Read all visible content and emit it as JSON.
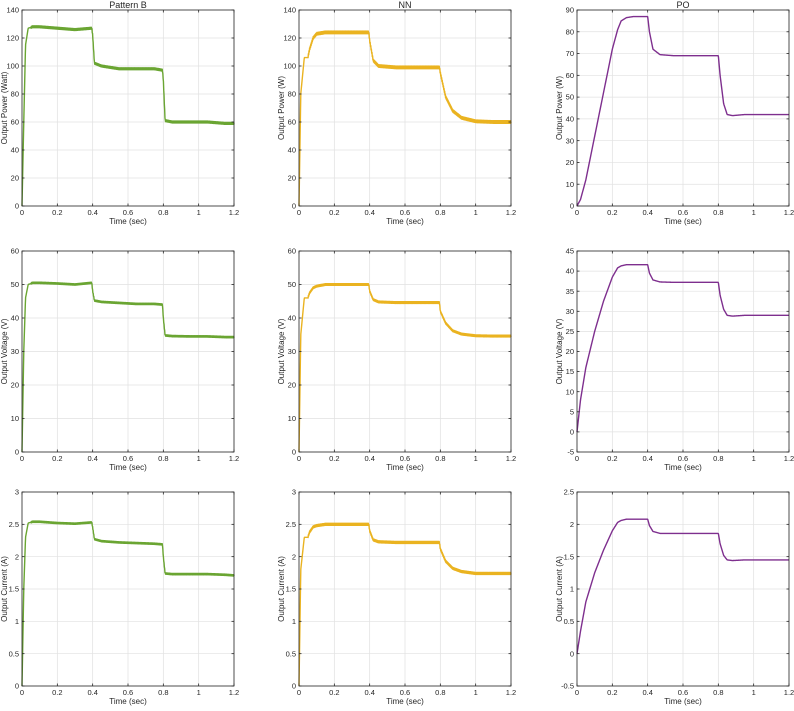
{
  "chart_data": [
    {
      "type": "line",
      "title": "Pattern B",
      "xlabel": "Time (sec)",
      "ylabel": "Output Power (Watt)",
      "xlim": [
        0,
        1.2
      ],
      "ylim": [
        0,
        140
      ],
      "xticks": [
        "0",
        "0.2",
        "0.4",
        "0.6",
        "0.8",
        "1",
        "1.2"
      ],
      "yticks": [
        "0",
        "20",
        "40",
        "60",
        "80",
        "100",
        "120",
        "140"
      ],
      "grid": true,
      "color": "#6aa532",
      "ripple": 1.3,
      "series": [
        {
          "x": [
            0,
            0.01,
            0.02,
            0.035,
            0.06,
            0.1,
            0.2,
            0.3,
            0.395,
            0.4,
            0.41,
            0.45,
            0.55,
            0.65,
            0.75,
            0.795,
            0.8,
            0.81,
            0.85,
            0.95,
            1.05,
            1.15,
            1.2
          ],
          "y": [
            0,
            60,
            115,
            127,
            128,
            128,
            127,
            126,
            127,
            122,
            102,
            100,
            98,
            98,
            98,
            97,
            90,
            61,
            60,
            60,
            60,
            59,
            59
          ]
        }
      ]
    },
    {
      "type": "line",
      "title": "NN",
      "xlabel": "Time (sec)",
      "ylabel": "Output Power (W)",
      "xlim": [
        0,
        1.2
      ],
      "ylim": [
        0,
        140
      ],
      "xticks": [
        "0",
        "0.2",
        "0.4",
        "0.6",
        "0.8",
        "1",
        "1.2"
      ],
      "yticks": [
        "0",
        "20",
        "40",
        "60",
        "80",
        "100",
        "120",
        "140"
      ],
      "grid": true,
      "color": "#eab320",
      "ripple": 1.8,
      "series": [
        {
          "x": [
            0,
            0.01,
            0.03,
            0.05,
            0.06,
            0.08,
            0.1,
            0.15,
            0.25,
            0.395,
            0.4,
            0.42,
            0.45,
            0.55,
            0.7,
            0.795,
            0.8,
            0.83,
            0.87,
            0.92,
            1.0,
            1.1,
            1.2
          ],
          "y": [
            0,
            80,
            106,
            106,
            112,
            120,
            123,
            124,
            124,
            124,
            118,
            104,
            100,
            99,
            99,
            99,
            95,
            78,
            68,
            63,
            60.5,
            60,
            60
          ]
        }
      ]
    },
    {
      "type": "line",
      "title": "PO",
      "xlabel": "Time (sec)",
      "ylabel": "Output Power (W)",
      "xlim": [
        0,
        1.2
      ],
      "ylim": [
        0,
        90
      ],
      "xticks": [
        "0",
        "0.2",
        "0.4",
        "0.6",
        "0.8",
        "1",
        "1.2"
      ],
      "yticks": [
        "0",
        "10",
        "20",
        "30",
        "40",
        "50",
        "60",
        "70",
        "80",
        "90"
      ],
      "grid": true,
      "color": "#7e2f8e",
      "ripple": 0,
      "series": [
        {
          "x": [
            0,
            0.02,
            0.05,
            0.1,
            0.15,
            0.2,
            0.23,
            0.25,
            0.28,
            0.32,
            0.4,
            0.41,
            0.43,
            0.47,
            0.55,
            0.7,
            0.8,
            0.81,
            0.83,
            0.85,
            0.88,
            0.95,
            1.05,
            1.2
          ],
          "y": [
            0,
            3,
            12,
            32,
            52,
            72,
            81,
            85,
            86.5,
            87,
            87,
            80,
            72,
            69.5,
            69,
            69,
            69,
            60,
            47,
            42,
            41.5,
            42,
            42,
            42
          ]
        }
      ]
    },
    {
      "type": "line",
      "title": "",
      "xlabel": "Time (sec)",
      "ylabel": "Output Voltage (V)",
      "xlim": [
        0,
        1.2
      ],
      "ylim": [
        0,
        60
      ],
      "xticks": [
        "0",
        "0.2",
        "0.4",
        "0.6",
        "0.8",
        "1",
        "1.2"
      ],
      "yticks": [
        "0",
        "10",
        "20",
        "30",
        "40",
        "50",
        "60"
      ],
      "grid": true,
      "color": "#6aa532",
      "ripple": 0.4,
      "series": [
        {
          "x": [
            0,
            0.01,
            0.02,
            0.035,
            0.06,
            0.1,
            0.2,
            0.3,
            0.395,
            0.4,
            0.41,
            0.45,
            0.55,
            0.65,
            0.75,
            0.795,
            0.8,
            0.81,
            0.85,
            0.95,
            1.05,
            1.15,
            1.2
          ],
          "y": [
            0,
            30,
            46,
            50,
            50.5,
            50.5,
            50.3,
            50,
            50.5,
            48,
            45.2,
            44.8,
            44.5,
            44.2,
            44.2,
            44,
            40,
            34.8,
            34.6,
            34.5,
            34.5,
            34.3,
            34.3
          ]
        }
      ]
    },
    {
      "type": "line",
      "title": "",
      "xlabel": "Time (sec)",
      "ylabel": "Output Voltage (V)",
      "xlim": [
        0,
        1.2
      ],
      "ylim": [
        0,
        60
      ],
      "xticks": [
        "0",
        "0.2",
        "0.4",
        "0.6",
        "0.8",
        "1",
        "1.2"
      ],
      "yticks": [
        "0",
        "10",
        "20",
        "30",
        "40",
        "50",
        "60"
      ],
      "grid": true,
      "color": "#eab320",
      "ripple": 0.5,
      "series": [
        {
          "x": [
            0,
            0.01,
            0.03,
            0.05,
            0.06,
            0.08,
            0.1,
            0.15,
            0.25,
            0.395,
            0.4,
            0.42,
            0.45,
            0.55,
            0.7,
            0.795,
            0.8,
            0.83,
            0.87,
            0.92,
            1.0,
            1.1,
            1.2
          ],
          "y": [
            0,
            35,
            46,
            46,
            47.5,
            49,
            49.5,
            50,
            50,
            50,
            48,
            45.5,
            44.8,
            44.6,
            44.6,
            44.6,
            42,
            38.5,
            36.2,
            35.2,
            34.7,
            34.6,
            34.6
          ]
        }
      ]
    },
    {
      "type": "line",
      "title": "",
      "xlabel": "Time (sec)",
      "ylabel": "Output Voltage (V)",
      "xlim": [
        0,
        1.2
      ],
      "ylim": [
        -5,
        45
      ],
      "xticks": [
        "0",
        "0.2",
        "0.4",
        "0.6",
        "0.8",
        "1",
        "1.2"
      ],
      "yticks": [
        "-5",
        "0",
        "5",
        "10",
        "15",
        "20",
        "25",
        "30",
        "35",
        "40",
        "45"
      ],
      "grid": true,
      "color": "#7e2f8e",
      "ripple": 0,
      "series": [
        {
          "x": [
            0,
            0.02,
            0.05,
            0.1,
            0.15,
            0.2,
            0.23,
            0.25,
            0.28,
            0.32,
            0.4,
            0.41,
            0.43,
            0.47,
            0.55,
            0.7,
            0.8,
            0.81,
            0.83,
            0.85,
            0.88,
            0.95,
            1.05,
            1.2
          ],
          "y": [
            0,
            8,
            16,
            25,
            32.5,
            38.5,
            40.8,
            41.3,
            41.6,
            41.6,
            41.6,
            39.5,
            37.8,
            37.3,
            37.2,
            37.2,
            37.2,
            34,
            30.5,
            29,
            28.8,
            29,
            29,
            29
          ]
        }
      ]
    },
    {
      "type": "line",
      "title": "",
      "xlabel": "Time (sec)",
      "ylabel": "Output Current (A)",
      "xlim": [
        0,
        1.2
      ],
      "ylim": [
        0,
        3
      ],
      "xticks": [
        "0",
        "0.2",
        "0.4",
        "0.6",
        "0.8",
        "1",
        "1.2"
      ],
      "yticks": [
        "0",
        "0.5",
        "1",
        "1.5",
        "2",
        "2.5",
        "3"
      ],
      "grid": true,
      "color": "#6aa532",
      "ripple": 0.02,
      "series": [
        {
          "x": [
            0,
            0.01,
            0.02,
            0.035,
            0.06,
            0.1,
            0.2,
            0.3,
            0.395,
            0.4,
            0.41,
            0.45,
            0.55,
            0.65,
            0.75,
            0.795,
            0.8,
            0.81,
            0.85,
            0.95,
            1.05,
            1.15,
            1.2
          ],
          "y": [
            0,
            1.5,
            2.3,
            2.52,
            2.54,
            2.54,
            2.52,
            2.51,
            2.53,
            2.45,
            2.27,
            2.24,
            2.22,
            2.21,
            2.2,
            2.19,
            2.0,
            1.74,
            1.73,
            1.73,
            1.73,
            1.72,
            1.71
          ]
        }
      ]
    },
    {
      "type": "line",
      "title": "",
      "xlabel": "Time (sec)",
      "ylabel": "Output Current (A)",
      "xlim": [
        0,
        1.2
      ],
      "ylim": [
        0,
        3
      ],
      "xticks": [
        "0",
        "0.2",
        "0.4",
        "0.6",
        "0.8",
        "1",
        "1.2"
      ],
      "yticks": [
        "0",
        "0.5",
        "1",
        "1.5",
        "2",
        "2.5",
        "3"
      ],
      "grid": true,
      "color": "#eab320",
      "ripple": 0.03,
      "series": [
        {
          "x": [
            0,
            0.01,
            0.03,
            0.05,
            0.06,
            0.08,
            0.1,
            0.15,
            0.25,
            0.395,
            0.4,
            0.42,
            0.45,
            0.55,
            0.7,
            0.795,
            0.8,
            0.83,
            0.87,
            0.92,
            1.0,
            1.1,
            1.2
          ],
          "y": [
            0,
            1.8,
            2.3,
            2.3,
            2.38,
            2.46,
            2.48,
            2.5,
            2.5,
            2.5,
            2.4,
            2.26,
            2.23,
            2.22,
            2.22,
            2.22,
            2.12,
            1.93,
            1.82,
            1.77,
            1.74,
            1.74,
            1.74
          ]
        }
      ]
    },
    {
      "type": "line",
      "title": "",
      "xlabel": "Time (sec)",
      "ylabel": "Output Current (A)",
      "xlim": [
        0,
        1.2
      ],
      "ylim": [
        -0.5,
        2.5
      ],
      "xticks": [
        "0",
        "0.2",
        "0.4",
        "0.6",
        "0.8",
        "1",
        "1.2"
      ],
      "yticks": [
        "-0.5",
        "0",
        "0.5",
        "1",
        "1.5",
        "2",
        "2.5"
      ],
      "grid": true,
      "color": "#7e2f8e",
      "ripple": 0,
      "series": [
        {
          "x": [
            0,
            0.02,
            0.05,
            0.1,
            0.15,
            0.2,
            0.23,
            0.25,
            0.28,
            0.32,
            0.4,
            0.41,
            0.43,
            0.47,
            0.55,
            0.7,
            0.8,
            0.81,
            0.83,
            0.85,
            0.88,
            0.95,
            1.05,
            1.2
          ],
          "y": [
            0,
            0.35,
            0.8,
            1.25,
            1.6,
            1.9,
            2.03,
            2.06,
            2.08,
            2.08,
            2.08,
            1.98,
            1.89,
            1.86,
            1.86,
            1.86,
            1.86,
            1.7,
            1.52,
            1.45,
            1.44,
            1.45,
            1.45,
            1.45
          ]
        }
      ]
    }
  ]
}
